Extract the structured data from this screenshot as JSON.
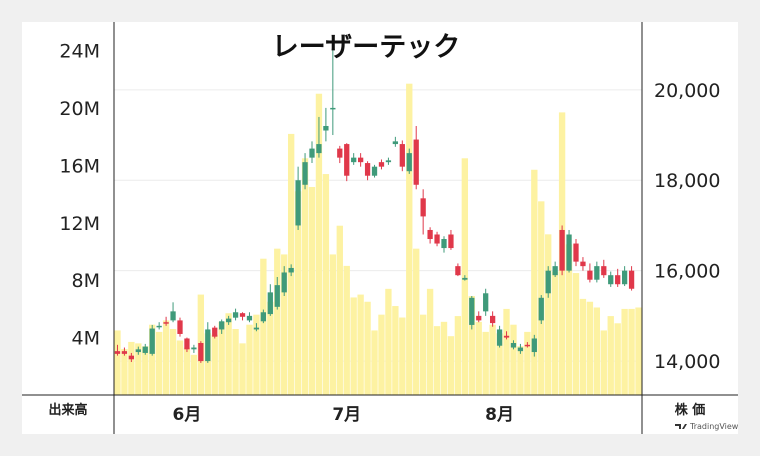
{
  "chart_data": {
    "type": "candlestick",
    "title": "レーザーテック",
    "left_axis_label": "出来高",
    "right_axis_label": "株 価",
    "brand": "TradingView",
    "volume_ticks": [
      "4M",
      "8M",
      "12M",
      "16M",
      "20M",
      "24M"
    ],
    "volume_tick_values": [
      4,
      8,
      12,
      16,
      20,
      24
    ],
    "price_ticks": [
      "14,000",
      "16,000",
      "18,000",
      "20,000"
    ],
    "price_tick_values": [
      14000,
      16000,
      18000,
      20000
    ],
    "volume_range_millions": [
      0,
      26
    ],
    "price_range": [
      13250,
      21500
    ],
    "months": [
      {
        "label": "6月",
        "index": 10
      },
      {
        "label": "7月",
        "index": 33
      },
      {
        "label": "8月",
        "index": 55
      }
    ],
    "colors": {
      "up": "#3f9a7a",
      "down": "#e0384a",
      "volume": "#fdf2a2"
    },
    "volume": [
      4.5,
      3.2,
      3.7,
      3.6,
      3.4,
      4.9,
      4.4,
      5.2,
      4.6,
      3.8,
      3.3,
      2.8,
      7.0,
      4.3,
      4.2,
      5.1,
      5.7,
      4.6,
      3.6,
      4.9,
      5.6,
      9.5,
      6.5,
      10.2,
      9.8,
      18.2,
      14.2,
      16.5,
      14.5,
      21.0,
      15.4,
      9.8,
      11.8,
      9.0,
      6.8,
      7.0,
      6.5,
      4.5,
      5.6,
      7.4,
      6.2,
      5.4,
      21.7,
      10.2,
      5.6,
      7.4,
      4.8,
      5.1,
      4.1,
      5.5,
      16.5,
      6.9,
      5.1,
      4.4,
      4.9,
      4.3,
      6.0,
      4.9,
      3.4,
      4.4,
      15.7,
      13.5,
      11.2,
      8.6,
      19.7,
      10.5,
      8.5,
      6.7,
      6.5,
      6.1,
      4.5,
      5.5,
      5.0,
      6.0,
      6.0,
      6.1
    ]
  }
}
